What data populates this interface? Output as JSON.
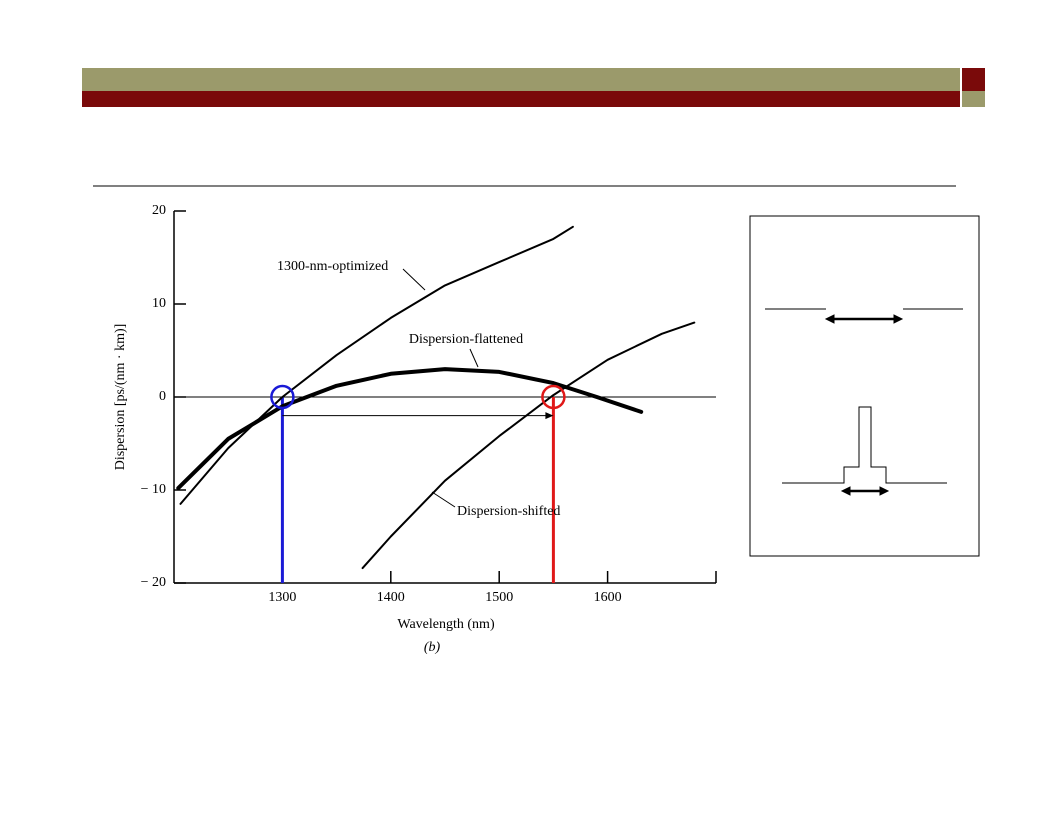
{
  "chart_data": {
    "type": "line",
    "xlabel": "Wavelength (nm)",
    "ylabel": "Dispersion [ps/(nm · km)]",
    "caption": "(b)",
    "xlim": [
      1200,
      1700
    ],
    "ylim": [
      -20,
      20
    ],
    "xticks": [
      1300,
      1400,
      1500,
      1600
    ],
    "yticks": [
      {
        "value": -20,
        "label": "− 20"
      },
      {
        "value": -10,
        "label": "− 10"
      },
      0,
      10,
      20
    ],
    "series": [
      {
        "name": "1300-nm-optimized",
        "color": "#000000",
        "line_width": 2,
        "x": [
          1206,
          1250,
          1300,
          1350,
          1400,
          1450,
          1500,
          1550,
          1568
        ],
        "values": [
          -11.5,
          -5.5,
          0,
          4.5,
          8.5,
          12,
          14.5,
          17,
          18.3
        ]
      },
      {
        "name": "Dispersion-flattened",
        "color": "#000000",
        "line_width": 4,
        "x": [
          1204,
          1250,
          1300,
          1350,
          1400,
          1450,
          1500,
          1550,
          1590,
          1631
        ],
        "values": [
          -9.8,
          -4.5,
          -1,
          1.2,
          2.5,
          3,
          2.7,
          1.5,
          0,
          -1.6
        ]
      },
      {
        "name": "Dispersion-shifted",
        "color": "#000000",
        "line_width": 2,
        "x": [
          1374,
          1400,
          1450,
          1500,
          1550,
          1600,
          1650,
          1680
        ],
        "values": [
          -18.4,
          -15,
          -9,
          -4.2,
          0.2,
          4,
          6.8,
          8
        ]
      }
    ],
    "highlights": [
      {
        "x": 1300,
        "y": 0,
        "color": "#1a1ad6"
      },
      {
        "x": 1550,
        "y": 0,
        "color": "#e01818"
      }
    ],
    "span_arrow": {
      "from": 1300,
      "to": 1550,
      "y": -2
    }
  }
}
